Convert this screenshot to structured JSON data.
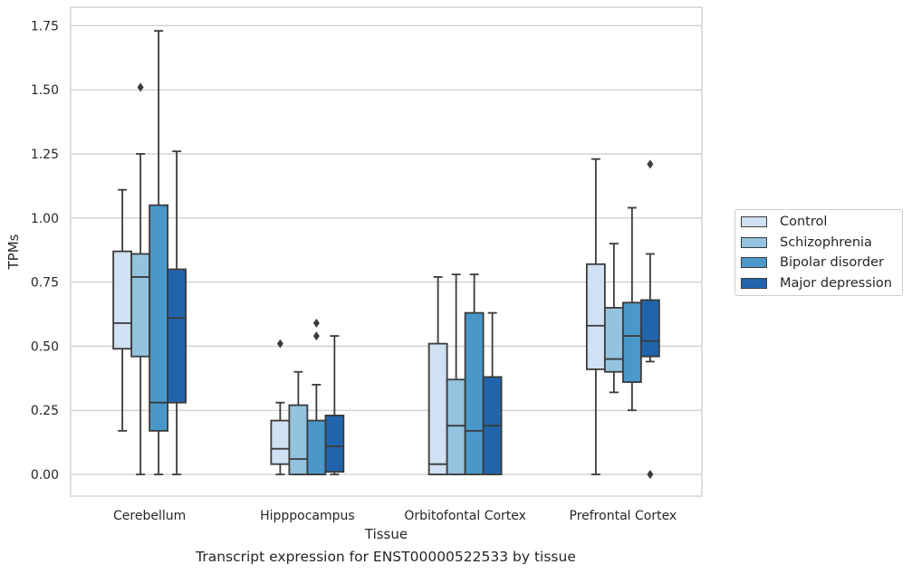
{
  "chart_data": {
    "type": "box",
    "categories": [
      "Cerebellum",
      "Hipppocampus",
      "Orbitofontal Cortex",
      "Prefrontal Cortex"
    ],
    "xlabel": "Tissue",
    "ylabel": "TPMs",
    "caption": "Transcript expression for ENST00000522533 by tissue",
    "ylim": [
      -0.08,
      1.82
    ],
    "yticks": [
      "0.00",
      "0.25",
      "0.50",
      "0.75",
      "1.00",
      "1.25",
      "1.50",
      "1.75"
    ],
    "grid": "horizontal",
    "legend_position": "right",
    "series": [
      {
        "name": "Control",
        "color": "#cfe1f2",
        "boxes": [
          {
            "whisker_low": 0.17,
            "q1": 0.49,
            "median": 0.59,
            "q3": 0.87,
            "whisker_high": 1.11,
            "outliers": []
          },
          {
            "whisker_low": 0.0,
            "q1": 0.04,
            "median": 0.1,
            "q3": 0.21,
            "whisker_high": 0.28,
            "outliers": [
              0.51
            ]
          },
          {
            "whisker_low": 0.0,
            "q1": 0.0,
            "median": 0.04,
            "q3": 0.51,
            "whisker_high": 0.77,
            "outliers": []
          },
          {
            "whisker_low": 0.0,
            "q1": 0.41,
            "median": 0.58,
            "q3": 0.82,
            "whisker_high": 1.23,
            "outliers": []
          }
        ]
      },
      {
        "name": "Schizophrenia",
        "color": "#93c3df",
        "boxes": [
          {
            "whisker_low": 0.0,
            "q1": 0.46,
            "median": 0.77,
            "q3": 0.86,
            "whisker_high": 1.25,
            "outliers": [
              1.51
            ]
          },
          {
            "whisker_low": 0.0,
            "q1": 0.0,
            "median": 0.06,
            "q3": 0.27,
            "whisker_high": 0.4,
            "outliers": []
          },
          {
            "whisker_low": 0.0,
            "q1": 0.0,
            "median": 0.19,
            "q3": 0.37,
            "whisker_high": 0.78,
            "outliers": []
          },
          {
            "whisker_low": 0.32,
            "q1": 0.4,
            "median": 0.45,
            "q3": 0.65,
            "whisker_high": 0.9,
            "outliers": []
          }
        ]
      },
      {
        "name": "Bipolar disorder",
        "color": "#4a98c9",
        "boxes": [
          {
            "whisker_low": 0.0,
            "q1": 0.17,
            "median": 0.28,
            "q3": 1.05,
            "whisker_high": 1.73,
            "outliers": []
          },
          {
            "whisker_low": 0.0,
            "q1": 0.0,
            "median": 0.0,
            "q3": 0.21,
            "whisker_high": 0.35,
            "outliers": [
              0.54,
              0.59
            ]
          },
          {
            "whisker_low": 0.0,
            "q1": 0.0,
            "median": 0.17,
            "q3": 0.63,
            "whisker_high": 0.78,
            "outliers": []
          },
          {
            "whisker_low": 0.25,
            "q1": 0.36,
            "median": 0.54,
            "q3": 0.67,
            "whisker_high": 1.04,
            "outliers": []
          }
        ]
      },
      {
        "name": "Major depression",
        "color": "#2164ab",
        "boxes": [
          {
            "whisker_low": 0.0,
            "q1": 0.28,
            "median": 0.61,
            "q3": 0.8,
            "whisker_high": 1.26,
            "outliers": []
          },
          {
            "whisker_low": 0.0,
            "q1": 0.01,
            "median": 0.11,
            "q3": 0.23,
            "whisker_high": 0.54,
            "outliers": []
          },
          {
            "whisker_low": 0.0,
            "q1": 0.0,
            "median": 0.19,
            "q3": 0.38,
            "whisker_high": 0.63,
            "outliers": []
          },
          {
            "whisker_low": 0.44,
            "q1": 0.46,
            "median": 0.52,
            "q3": 0.68,
            "whisker_high": 0.86,
            "outliers": [
              0.0,
              1.21
            ]
          }
        ]
      }
    ]
  }
}
